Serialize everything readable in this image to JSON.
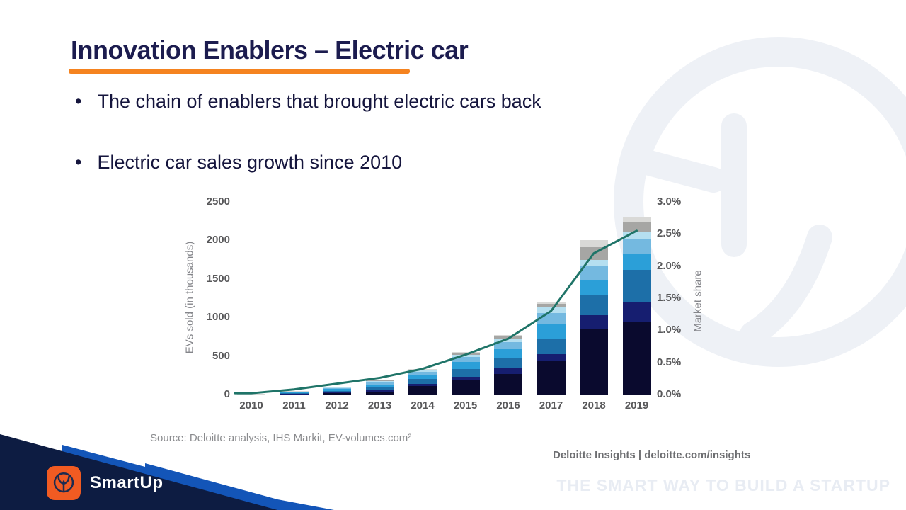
{
  "slide": {
    "title": "Innovation Enablers – Electric car",
    "bullets": [
      "The chain of enablers that brought electric cars back",
      "Electric car sales growth since 2010"
    ],
    "source_note": "Source: Deloitte analysis, IHS Markit, EV-volumes.com²",
    "chart_attribution": "Deloitte Insights | deloitte.com/insights",
    "footer_tagline": "THE SMART WAY TO BUILD A STARTUP",
    "logo_text": "SmartUp"
  },
  "colors": {
    "title_navy": "#1c1c4f",
    "accent_orange": "#f5831f",
    "banner_navy": "#0d1c42",
    "banner_blue": "#1355b8",
    "logo_orange": "#f15b22",
    "watermark_gray": "#eef1f6",
    "tick_gray": "#58585a"
  },
  "chart_data": {
    "type": "bar",
    "subtype": "stacked-bar-with-line-overlay",
    "title": "",
    "categories": [
      "2010",
      "2011",
      "2012",
      "2013",
      "2014",
      "2015",
      "2016",
      "2017",
      "2018",
      "2019"
    ],
    "series": [
      {
        "name": "segment-darkest-navy",
        "color": "#0a0a2e",
        "values": [
          1,
          6,
          18,
          40,
          110,
          185,
          265,
          430,
          850,
          950
        ]
      },
      {
        "name": "segment-dark-blue",
        "color": "#161e70",
        "values": [
          1,
          5,
          10,
          18,
          30,
          45,
          75,
          95,
          180,
          250
        ]
      },
      {
        "name": "segment-steel-blue",
        "color": "#1d6fa8",
        "values": [
          2,
          9,
          22,
          40,
          60,
          100,
          130,
          200,
          255,
          415
        ]
      },
      {
        "name": "segment-bright-blue",
        "color": "#2b9fd8",
        "values": [
          2,
          9,
          20,
          35,
          55,
          90,
          120,
          185,
          205,
          205
        ]
      },
      {
        "name": "segment-light-blue",
        "color": "#74b9e0",
        "values": [
          2,
          8,
          16,
          30,
          40,
          70,
          90,
          150,
          170,
          205
        ]
      },
      {
        "name": "segment-pale-blue",
        "color": "#b5dff0",
        "values": [
          1,
          4,
          8,
          15,
          15,
          25,
          40,
          70,
          85,
          85
        ]
      },
      {
        "name": "segment-grey",
        "color": "#a6a6a4",
        "values": [
          0.7,
          3,
          4,
          12,
          14,
          25,
          35,
          45,
          165,
          125
        ]
      },
      {
        "name": "segment-light-grey",
        "color": "#d9d9d7",
        "values": [
          0.3,
          1,
          2,
          5,
          6,
          10,
          15,
          25,
          90,
          65
        ]
      }
    ],
    "bar_totals": [
      10,
      45,
      100,
      195,
      330,
      550,
      770,
      1200,
      2000,
      2300
    ],
    "line_series": {
      "name": "Market share",
      "color": "#1f7468",
      "values_percent": [
        0.02,
        0.08,
        0.17,
        0.26,
        0.4,
        0.62,
        0.87,
        1.3,
        2.2,
        2.55
      ]
    },
    "left_axis": {
      "label": "EVs sold (in thousands)",
      "ticks": [
        0,
        500,
        1000,
        1500,
        2000,
        2500
      ],
      "max": 2500
    },
    "right_axis": {
      "label": "Market share",
      "tick_labels": [
        "0.0%",
        "0.5%",
        "1.0%",
        "1.5%",
        "2.0%",
        "2.5%",
        "3.0%"
      ],
      "max_percent": 3.0
    },
    "grid": false,
    "legend": "none"
  }
}
